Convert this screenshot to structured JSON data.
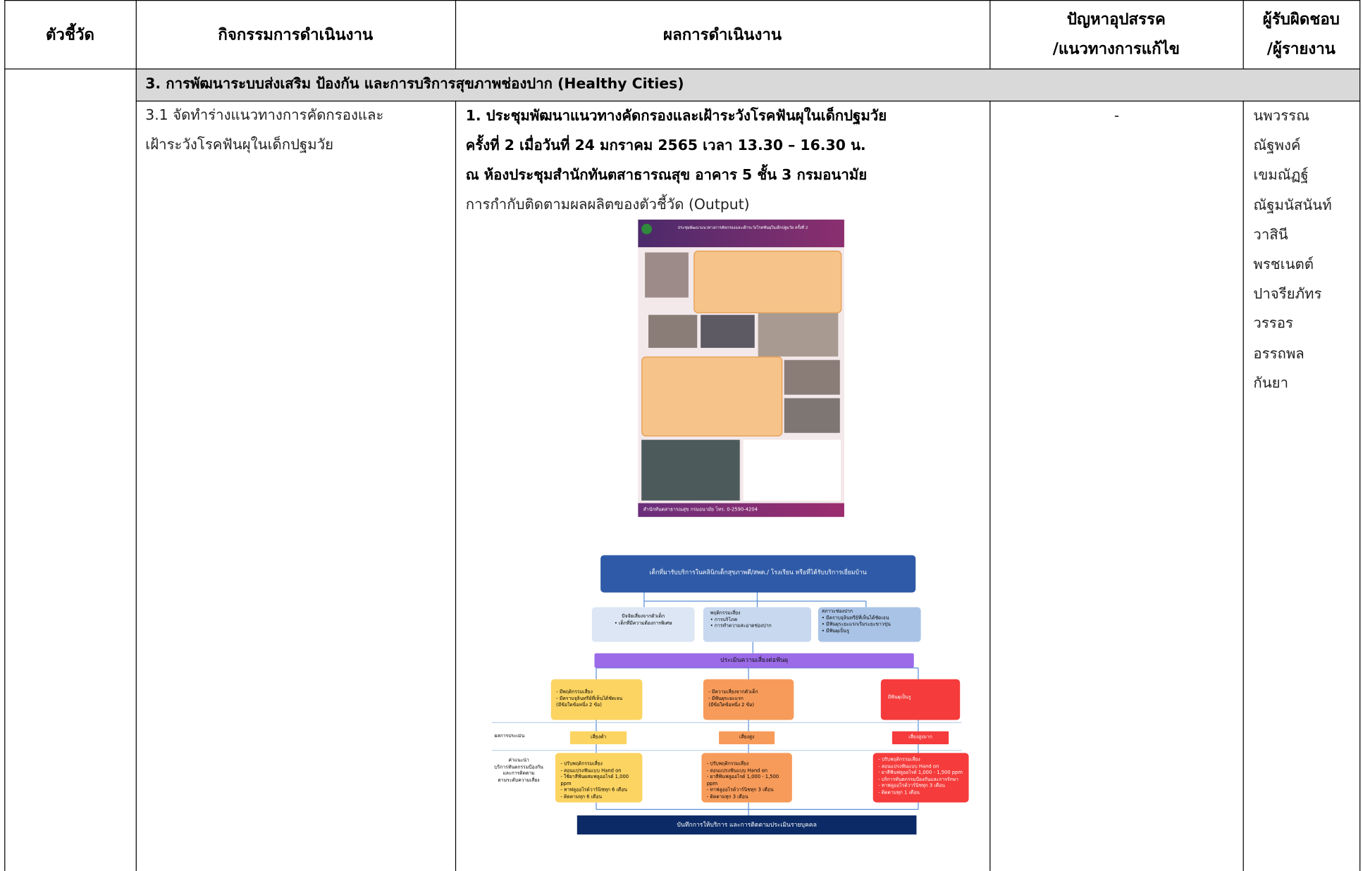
{
  "header": {
    "indicator": "ตัวชี้วัด",
    "activity": "กิจกรรมการดำเนินงาน",
    "results": "ผลการดำเนินงาน",
    "problems": [
      "ปัญหาอุปสรรค",
      "/แนวทางการแก้ไข"
    ],
    "responsible": [
      "ผู้รับผิดชอบ",
      "/ผู้รายงาน"
    ]
  },
  "section": "3. การพัฒนาระบบส่งเสริม ป้องกัน และการบริการสุขภาพช่องปาก (Healthy Cities)",
  "row": {
    "activity": [
      "3.1 จัดทำร่างแนวทางการคัดกรองและ",
      "เฝ้าระวังโรคฟันผุในเด็กปฐมวัย"
    ],
    "results": {
      "heading": [
        "1. ประชุมพัฒนาแนวทางคัดกรองและเฝ้าระวังโรคฟันผุในเด็กปฐมวัย",
        "ครั้งที่ 2 เมื่อวันที่ 24 มกราคม 2565 เวลา 13.30 – 16.30 น.",
        "ณ ห้องประชุมสำนักทันตสาธารณสุข อาคาร 5 ชั้น 3 กรมอนามัย"
      ],
      "subheading": "การกำกับติดตามผลผลิตของตัวชี้วัด (Output)"
    },
    "problems": "-",
    "responsible": [
      "นพวรรณ",
      "ณัฐพงค์",
      "เขมณัฏฐ์",
      "ณัฐมนัสนันท์",
      "วาสินี",
      "พรชเนตต์",
      "ปาจรียภัทร",
      "วรรอร",
      "อรรถพล",
      "กันยา"
    ]
  },
  "poster": {
    "title": "ประชุมพัฒนาแนวทางการคัดกรองและเฝ้าระวังโรคฟันผุในเด็กปฐมวัย ครั้งที่ 2",
    "footer": "สำนักทันตสาธารณสุข กรมอนามัย โทร. 0-2590-4204"
  },
  "flowchart": {
    "top": "เด็กที่มารับบริการในคลินิกเด็กสุขภาพดี/สพด./ โรงเรียน หรือที่ได้รับบริการเยี่ยมบ้าน",
    "factors": [
      [
        "ปัจจัยเสี่ยงจากตัวเด็ก",
        "• เด็กที่มีความต้องการพิเศษ"
      ],
      [
        "พฤติกรรมเสี่ยง",
        "• การบริโภค",
        "• การทำความสะอาดช่องปาก"
      ],
      [
        "สภาวะช่องปาก",
        "• มีคราบจุลินทรีย์ที่เห็นได้ชัดเจน",
        "• มีฟันผุระยะแรกเริ่มระยะขาวขุ่น",
        "• มีฟันผุเป็นรู"
      ]
    ],
    "assess": "ประเมินความเสี่ยงต่อฟันผุ",
    "criteria": [
      [
        "- มีพฤติกรรมเสี่ยง",
        "- มีคราบจุลินทรีย์ที่เห็นได้ชัดเจน",
        "(มีข้อใดข้อหนึ่ง 2 ข้อ)"
      ],
      [
        "- มีความเสี่ยงจากตัวเด็ก",
        "- มีฟันผุระยะแรก",
        "(มีข้อใดข้อหนึ่ง 2 ข้อ)"
      ],
      [
        "มีฟันผุเป็นรู"
      ]
    ],
    "result_label": "ผลการประเมิน",
    "levels": [
      "เสี่ยงต่ำ",
      "เสี่ยงสูง",
      "เสี่ยงสูงมาก"
    ],
    "advice_label": [
      "คำแนะนำ",
      "บริการทันตกรรมป้องกัน",
      "และการติดตาม",
      "ตามระดับความเสี่ยง"
    ],
    "advice": [
      [
        "- ปรับพฤติกรรมเสี่ยง",
        "- สอนแปรงฟันแบบ Hand on",
        "- ใช้ยาสีฟันผสมฟลูออไรด์ 1,000 ppm",
        "- ทาฟลูออไรด์วาร์นิชทุก 6 เดือน",
        "- ติดตามทุก 6 เดือน"
      ],
      [
        "- ปรับพฤติกรรมเสี่ยง",
        "- สอนแปรงฟันแบบ Hand on",
        "- ยาสีฟันฟลูออไรด์ 1,000 - 1,500 ppm",
        "- ทาฟลูออไรด์วาร์นิชทุก 3 เดือน",
        "- ติดตามทุก 3 เดือน"
      ],
      [
        "- ปรับพฤติกรรมเสี่ยง",
        "- สอนแปรงฟันแบบ Hand on",
        "- ยาสีฟันฟลูออไรด์ 1,000 - 1,500 ppm",
        "- บริการทันตกรรมป้องกันและการรักษา",
        "- ทาฟลูออไรด์วาร์นิชทุก 3 เดือน",
        "- ติดตามทุก 1 เดือน"
      ]
    ],
    "bottom": "บันทึกการให้บริการ และการติดตามประเมินรายบุคคล"
  }
}
